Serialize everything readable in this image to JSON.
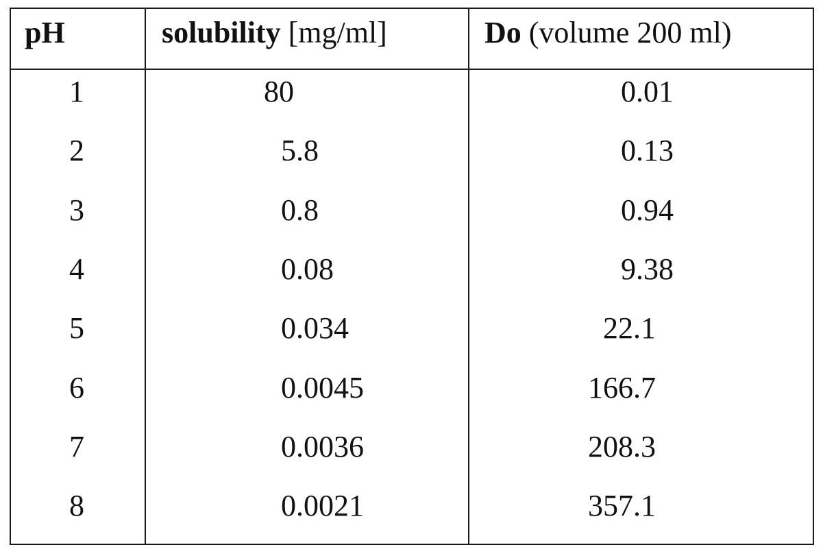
{
  "table": {
    "headers": {
      "ph": "pH",
      "solubility_bold": "solubility",
      "solubility_rest": " [mg/ml]",
      "do_bold": "Do",
      "do_rest": " (volume 200 ml)"
    },
    "rows": [
      {
        "ph": "1",
        "solubility": "80",
        "do": "0.01"
      },
      {
        "ph": "2",
        "solubility": "5.8",
        "do": "0.13"
      },
      {
        "ph": "3",
        "solubility": "0.8",
        "do": "0.94"
      },
      {
        "ph": "4",
        "solubility": "0.08",
        "do": "9.38"
      },
      {
        "ph": "5",
        "solubility": "0.034",
        "do": "22.1"
      },
      {
        "ph": "6",
        "solubility": "0.0045",
        "do": "166.7"
      },
      {
        "ph": "7",
        "solubility": "0.0036",
        "do": "208.3"
      },
      {
        "ph": "8",
        "solubility": "0.0021",
        "do": "357.1"
      }
    ]
  }
}
